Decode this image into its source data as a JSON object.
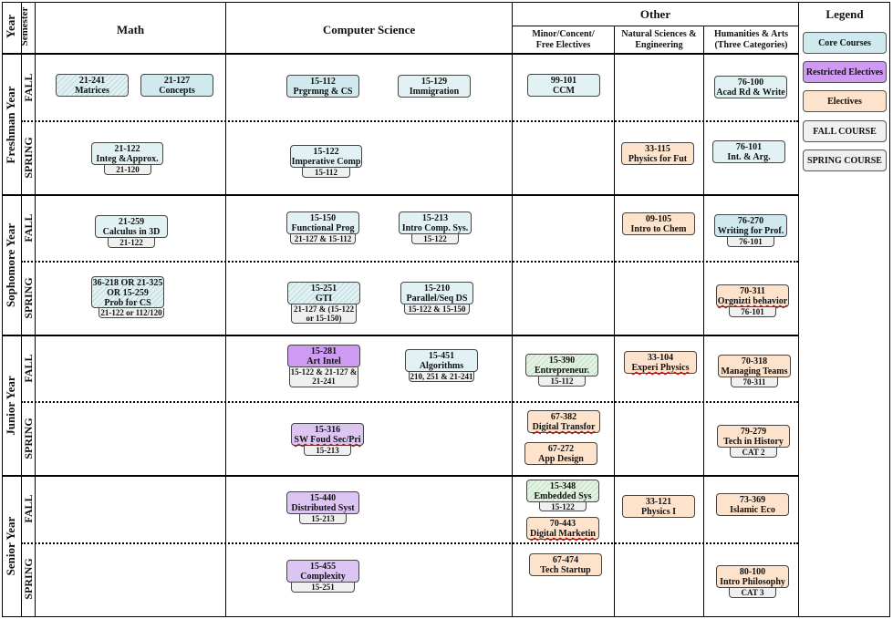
{
  "headers": {
    "year": "Year",
    "semester": "Semester",
    "math": "Math",
    "cs": "Computer Science",
    "other": "Other",
    "minor": [
      "Minor/Concent/",
      "Free Electives"
    ],
    "natsci": [
      "Natural Sciences &",
      "Engineering"
    ],
    "hum": [
      "Humanities & Arts",
      "(Three Categories)"
    ],
    "legend": "Legend"
  },
  "years": [
    "Freshman Year",
    "Sophomore Year",
    "Junior Year",
    "Senior Year"
  ],
  "semesters": {
    "fall": "FALL",
    "spring": "SPRING"
  },
  "legend": [
    {
      "label": "Core Courses",
      "color": "#cfe9ee"
    },
    {
      "label": "Restricted Electives",
      "color": "#cf9bf2"
    },
    {
      "label": "Electives",
      "color": "#fde2cc"
    },
    {
      "label": "FALL COURSE",
      "color": "#f0f0f0"
    },
    {
      "label": "SPRING COURSE",
      "color": "#f0f0f0"
    }
  ],
  "courses": {
    "c21241": {
      "code": "21-241",
      "name": "Matrices"
    },
    "c21127": {
      "code": "21-127",
      "name": "Concepts"
    },
    "c15112": {
      "code": "15-112",
      "name": "Prgrmng & CS"
    },
    "c15129": {
      "code": "15-129",
      "name": "Immigration"
    },
    "c99101": {
      "code": "99-101",
      "name": "CCM"
    },
    "c76100": {
      "code": "76-100",
      "name": "Acad Rd & Write"
    },
    "c21122": {
      "code": "21-122",
      "name": "Integ &Approx.",
      "prereq": "21-120"
    },
    "c15122": {
      "code": "15-122",
      "name": "Imperative Comp",
      "prereq": "15-112"
    },
    "c33115": {
      "code": "33-115",
      "name": "Physics for Fut"
    },
    "c76101": {
      "code": "76-101",
      "name": "Int. & Arg."
    },
    "c21259": {
      "code": "21-259",
      "name": "Calculus in 3D",
      "prereq": "21-122"
    },
    "c15150": {
      "code": "15-150",
      "name": "Functional Prog",
      "prereq": "21-127 & 15-112"
    },
    "c15213": {
      "code": "15-213",
      "name": "Intro Comp. Sys.",
      "prereq": "15-122"
    },
    "c09105": {
      "code": "09-105",
      "name": "Intro to Chem"
    },
    "c76270": {
      "code": "76-270",
      "name": "Writing for Prof.",
      "prereq": "76-101"
    },
    "c36218": {
      "code": "36-218 OR 21-325",
      "line2": "OR 15-259",
      "name": "Prob for CS",
      "prereq": "21-122 or 112/120"
    },
    "c15251": {
      "code": "15-251",
      "name": "GTI",
      "prereq": "21-127 & (15-122",
      "prereq2": "or 15-150)"
    },
    "c15210": {
      "code": "15-210",
      "name": "Parallel/Seq DS",
      "prereq": "15-122 & 15-150"
    },
    "c70311": {
      "code": "70-311",
      "name": "Orgnizti behavior",
      "prereq": "76-101"
    },
    "c15281": {
      "code": "15-281",
      "name": "Art Intel",
      "prereq": "15-122 & 21-127 &",
      "prereq2": "21-241"
    },
    "c15451": {
      "code": "15-451",
      "name": "Algorithms",
      "prereq": "210, 251 & 21-241"
    },
    "c15390": {
      "code": "15-390",
      "name": "Entrepreneur.",
      "prereq": "15-112"
    },
    "c33104": {
      "code": "33-104",
      "name": "Experi Physics"
    },
    "c70318": {
      "code": "70-318",
      "name": "Managing Teams",
      "prereq": "70-311"
    },
    "c15316": {
      "code": "15-316",
      "name": "SW Foud Sec/Pri",
      "prereq": "15-213"
    },
    "c67382": {
      "code": "67-382",
      "name": "Digital Transfor"
    },
    "c67272": {
      "code": "67-272",
      "name": "App Design"
    },
    "c79279": {
      "code": "79-279",
      "name": "Tech in History",
      "prereq": "CAT 2"
    },
    "c15440": {
      "code": "15-440",
      "name": "Distributed Syst",
      "prereq": "15-213"
    },
    "c15348": {
      "code": "15-348",
      "name": "Embedded Sys",
      "prereq": "15-122"
    },
    "c70443": {
      "code": "70-443",
      "name": "Digital Marketin"
    },
    "c33121": {
      "code": "33-121",
      "name": "Physics I"
    },
    "c73369": {
      "code": "73-369",
      "name": "Islamic Eco"
    },
    "c15455": {
      "code": "15-455",
      "name": "Complexity",
      "prereq": "15-251"
    },
    "c67474": {
      "code": "67-474",
      "name": "Tech Startup"
    },
    "c80100": {
      "code": "80-100",
      "name": "Intro Philosophy",
      "prereq": "CAT 3"
    }
  }
}
